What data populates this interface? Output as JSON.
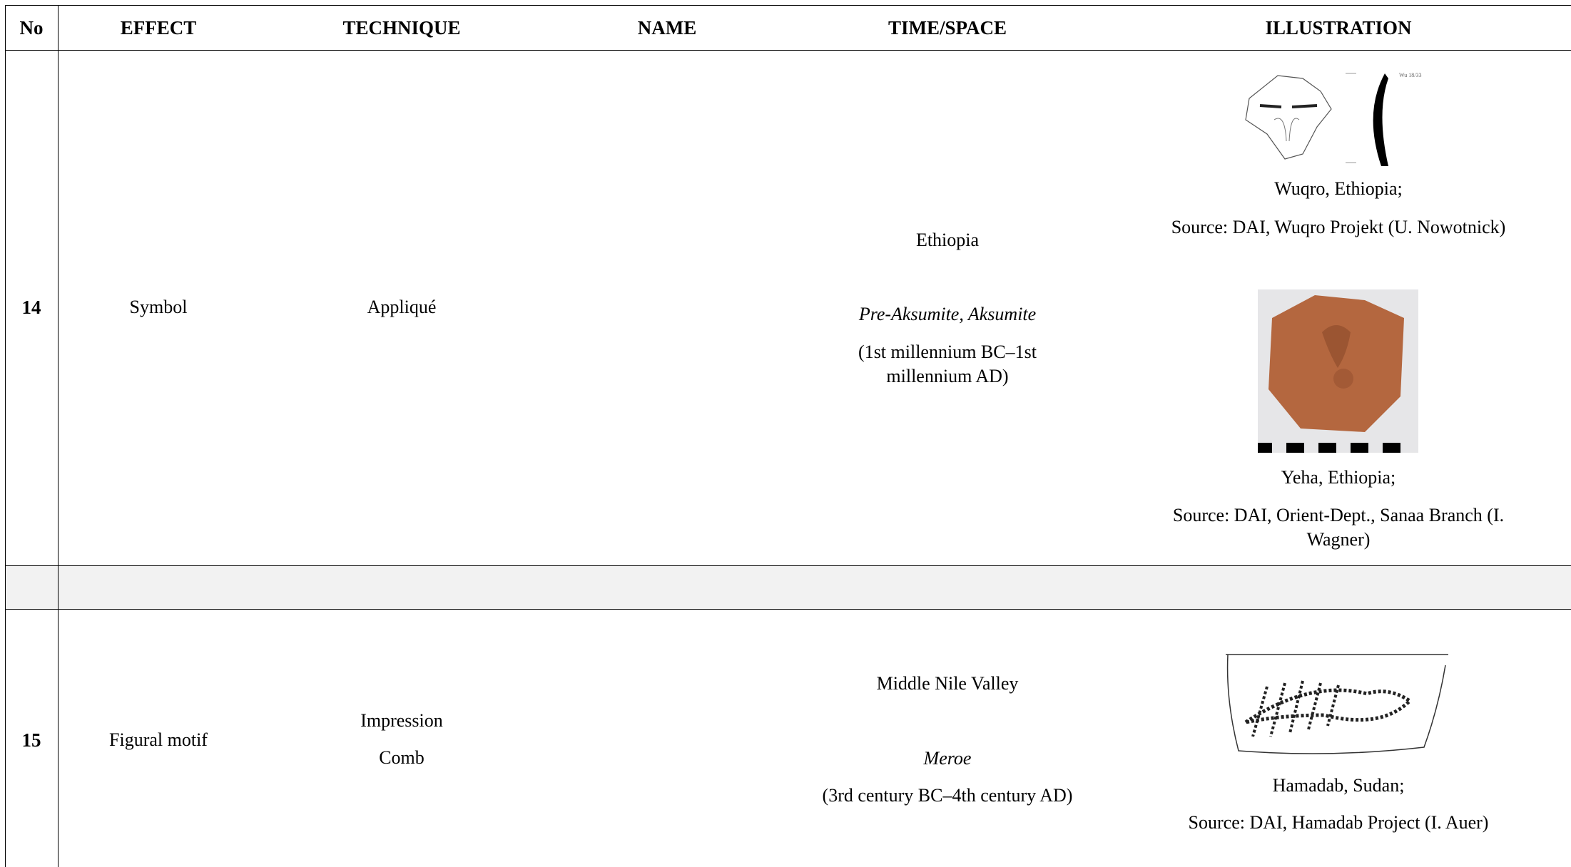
{
  "table": {
    "header": [
      "No",
      "EFFECT",
      "TECHNIQUE",
      "NAME",
      "TIME/SPACE",
      "ILLUSTRATION"
    ],
    "rows": [
      {
        "no": "14",
        "effect": "Symbol",
        "technique": [
          "Appliqué"
        ],
        "place": "Ethiopia",
        "period": "Pre-Aksumite, Aksumite",
        "dates": "(1st millennium BC–1st millennium AD)",
        "figures": [
          {
            "caption": [
              "Wuqro, Ethiopia;",
              "Source: DAI, Wuqro Projekt (U. Nowotnick)"
            ]
          },
          {
            "caption": [
              "Yeha, Ethiopia;",
              "Source: DAI, Orient-Dept., Sanaa Branch (I. Wagner)"
            ]
          }
        ]
      },
      {
        "no": "15",
        "effect": "Figural motif",
        "technique": [
          "Impression",
          "Comb"
        ],
        "place": "Middle Nile Valley",
        "period": "Meroe",
        "dates": "(3rd century BC–4th century AD)",
        "figures": [
          {
            "caption": [
              "Hamadab, Sudan;",
              "Source: DAI, Hamadab Project (I. Auer)"
            ]
          }
        ]
      }
    ]
  }
}
